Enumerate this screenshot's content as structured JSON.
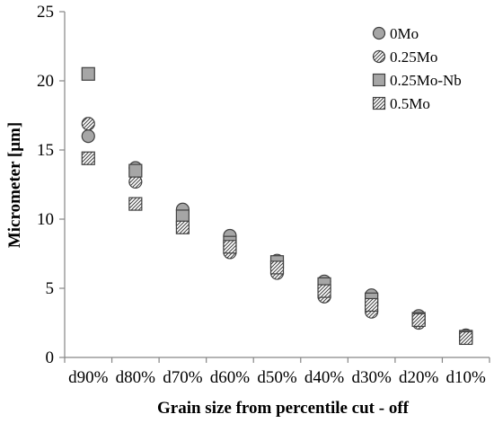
{
  "chart_data": {
    "type": "scatter",
    "title": "",
    "xlabel": "Grain size from percentile cut - off",
    "ylabel": "Micrometer [μm]",
    "categories": [
      "d90%",
      "d80%",
      "d70%",
      "d60%",
      "d50%",
      "d40%",
      "d30%",
      "d20%",
      "d10%"
    ],
    "ylim": [
      0,
      25
    ],
    "yticks": [
      "0",
      "5",
      "10",
      "15",
      "20",
      "25"
    ],
    "grid": false,
    "legend_position": "top-right",
    "series": [
      {
        "name": "0Mo",
        "marker": "circle",
        "fill": "gray",
        "values": [
          16.0,
          13.7,
          10.7,
          8.8,
          7.0,
          5.5,
          4.5,
          3.0,
          1.6
        ]
      },
      {
        "name": "0.25Mo",
        "marker": "circle",
        "fill": "hatch",
        "values": [
          16.9,
          12.7,
          9.6,
          7.6,
          6.1,
          4.4,
          3.3,
          2.5,
          1.4
        ]
      },
      {
        "name": "0.25Mo-Nb",
        "marker": "square",
        "fill": "gray",
        "values": [
          20.5,
          13.5,
          10.2,
          8.3,
          6.9,
          5.3,
          4.2,
          2.8,
          1.5
        ]
      },
      {
        "name": "0.5Mo",
        "marker": "square",
        "fill": "hatch",
        "values": [
          14.4,
          11.1,
          9.4,
          8.0,
          6.5,
          4.8,
          3.8,
          2.7,
          1.4
        ]
      }
    ],
    "colors": {
      "marker_fill": "#a6a6a6",
      "marker_stroke": "#404040",
      "hatch_line": "#404040",
      "axis": "#868686",
      "text": "#000000"
    }
  }
}
